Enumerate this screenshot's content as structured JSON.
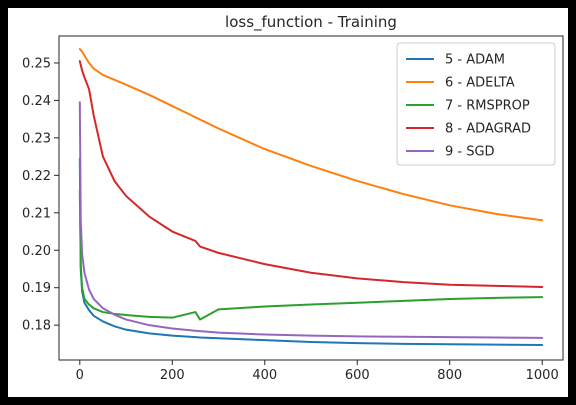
{
  "chart_data": {
    "type": "line",
    "title": "loss_function - Training",
    "xlabel": "",
    "ylabel": "",
    "xlim": [
      -45,
      1045
    ],
    "ylim": [
      0.1707,
      0.2572
    ],
    "xticks": [
      0,
      200,
      400,
      600,
      800,
      1000
    ],
    "xtick_labels": [
      "0",
      "200",
      "400",
      "600",
      "800",
      "1000"
    ],
    "yticks": [
      0.18,
      0.19,
      0.2,
      0.21,
      0.22,
      0.23,
      0.24,
      0.25
    ],
    "ytick_labels": [
      "0.18",
      "0.19",
      "0.20",
      "0.21",
      "0.22",
      "0.23",
      "0.24",
      "0.25"
    ],
    "grid": false,
    "legend_position": "top-right",
    "x": [
      0,
      2,
      5,
      10,
      20,
      30,
      50,
      75,
      100,
      150,
      200,
      250,
      260,
      300,
      400,
      500,
      600,
      700,
      800,
      900,
      1000
    ],
    "series": [
      {
        "name": "5 - ADAM",
        "color": "#1f77b4",
        "values": [
          0.2245,
          0.195,
          0.189,
          0.186,
          0.184,
          0.1825,
          0.181,
          0.1797,
          0.1788,
          0.1778,
          0.1772,
          0.1768,
          0.1767,
          0.1765,
          0.176,
          0.1755,
          0.1752,
          0.175,
          0.1749,
          0.1748,
          0.1747
        ]
      },
      {
        "name": "6 - ADELTA",
        "color": "#ff7f0e",
        "values": [
          0.2537,
          0.2535,
          0.253,
          0.252,
          0.25,
          0.2485,
          0.2468,
          0.2455,
          0.2442,
          0.2415,
          0.2385,
          0.2355,
          0.2349,
          0.2325,
          0.227,
          0.2225,
          0.2185,
          0.215,
          0.212,
          0.2097,
          0.208
        ]
      },
      {
        "name": "7 - RMSPROP",
        "color": "#2ca02c",
        "values": [
          0.216,
          0.196,
          0.19,
          0.187,
          0.1855,
          0.1845,
          0.1835,
          0.183,
          0.1827,
          0.1822,
          0.182,
          0.1835,
          0.1815,
          0.1842,
          0.185,
          0.1855,
          0.186,
          0.1865,
          0.187,
          0.1873,
          0.1875
        ]
      },
      {
        "name": "8 - ADAGRAD",
        "color": "#d62728",
        "values": [
          0.2505,
          0.2495,
          0.248,
          0.2462,
          0.243,
          0.236,
          0.225,
          0.2185,
          0.2145,
          0.209,
          0.205,
          0.2025,
          0.201,
          0.1993,
          0.1963,
          0.194,
          0.1925,
          0.1915,
          0.1908,
          0.1905,
          0.1902
        ]
      },
      {
        "name": "9 - SGD",
        "color": "#9467bd",
        "values": [
          0.2395,
          0.208,
          0.199,
          0.194,
          0.1895,
          0.187,
          0.1845,
          0.1828,
          0.1815,
          0.18,
          0.1791,
          0.1785,
          0.1784,
          0.178,
          0.1775,
          0.1772,
          0.177,
          0.1769,
          0.1768,
          0.1767,
          0.1766
        ]
      }
    ]
  }
}
